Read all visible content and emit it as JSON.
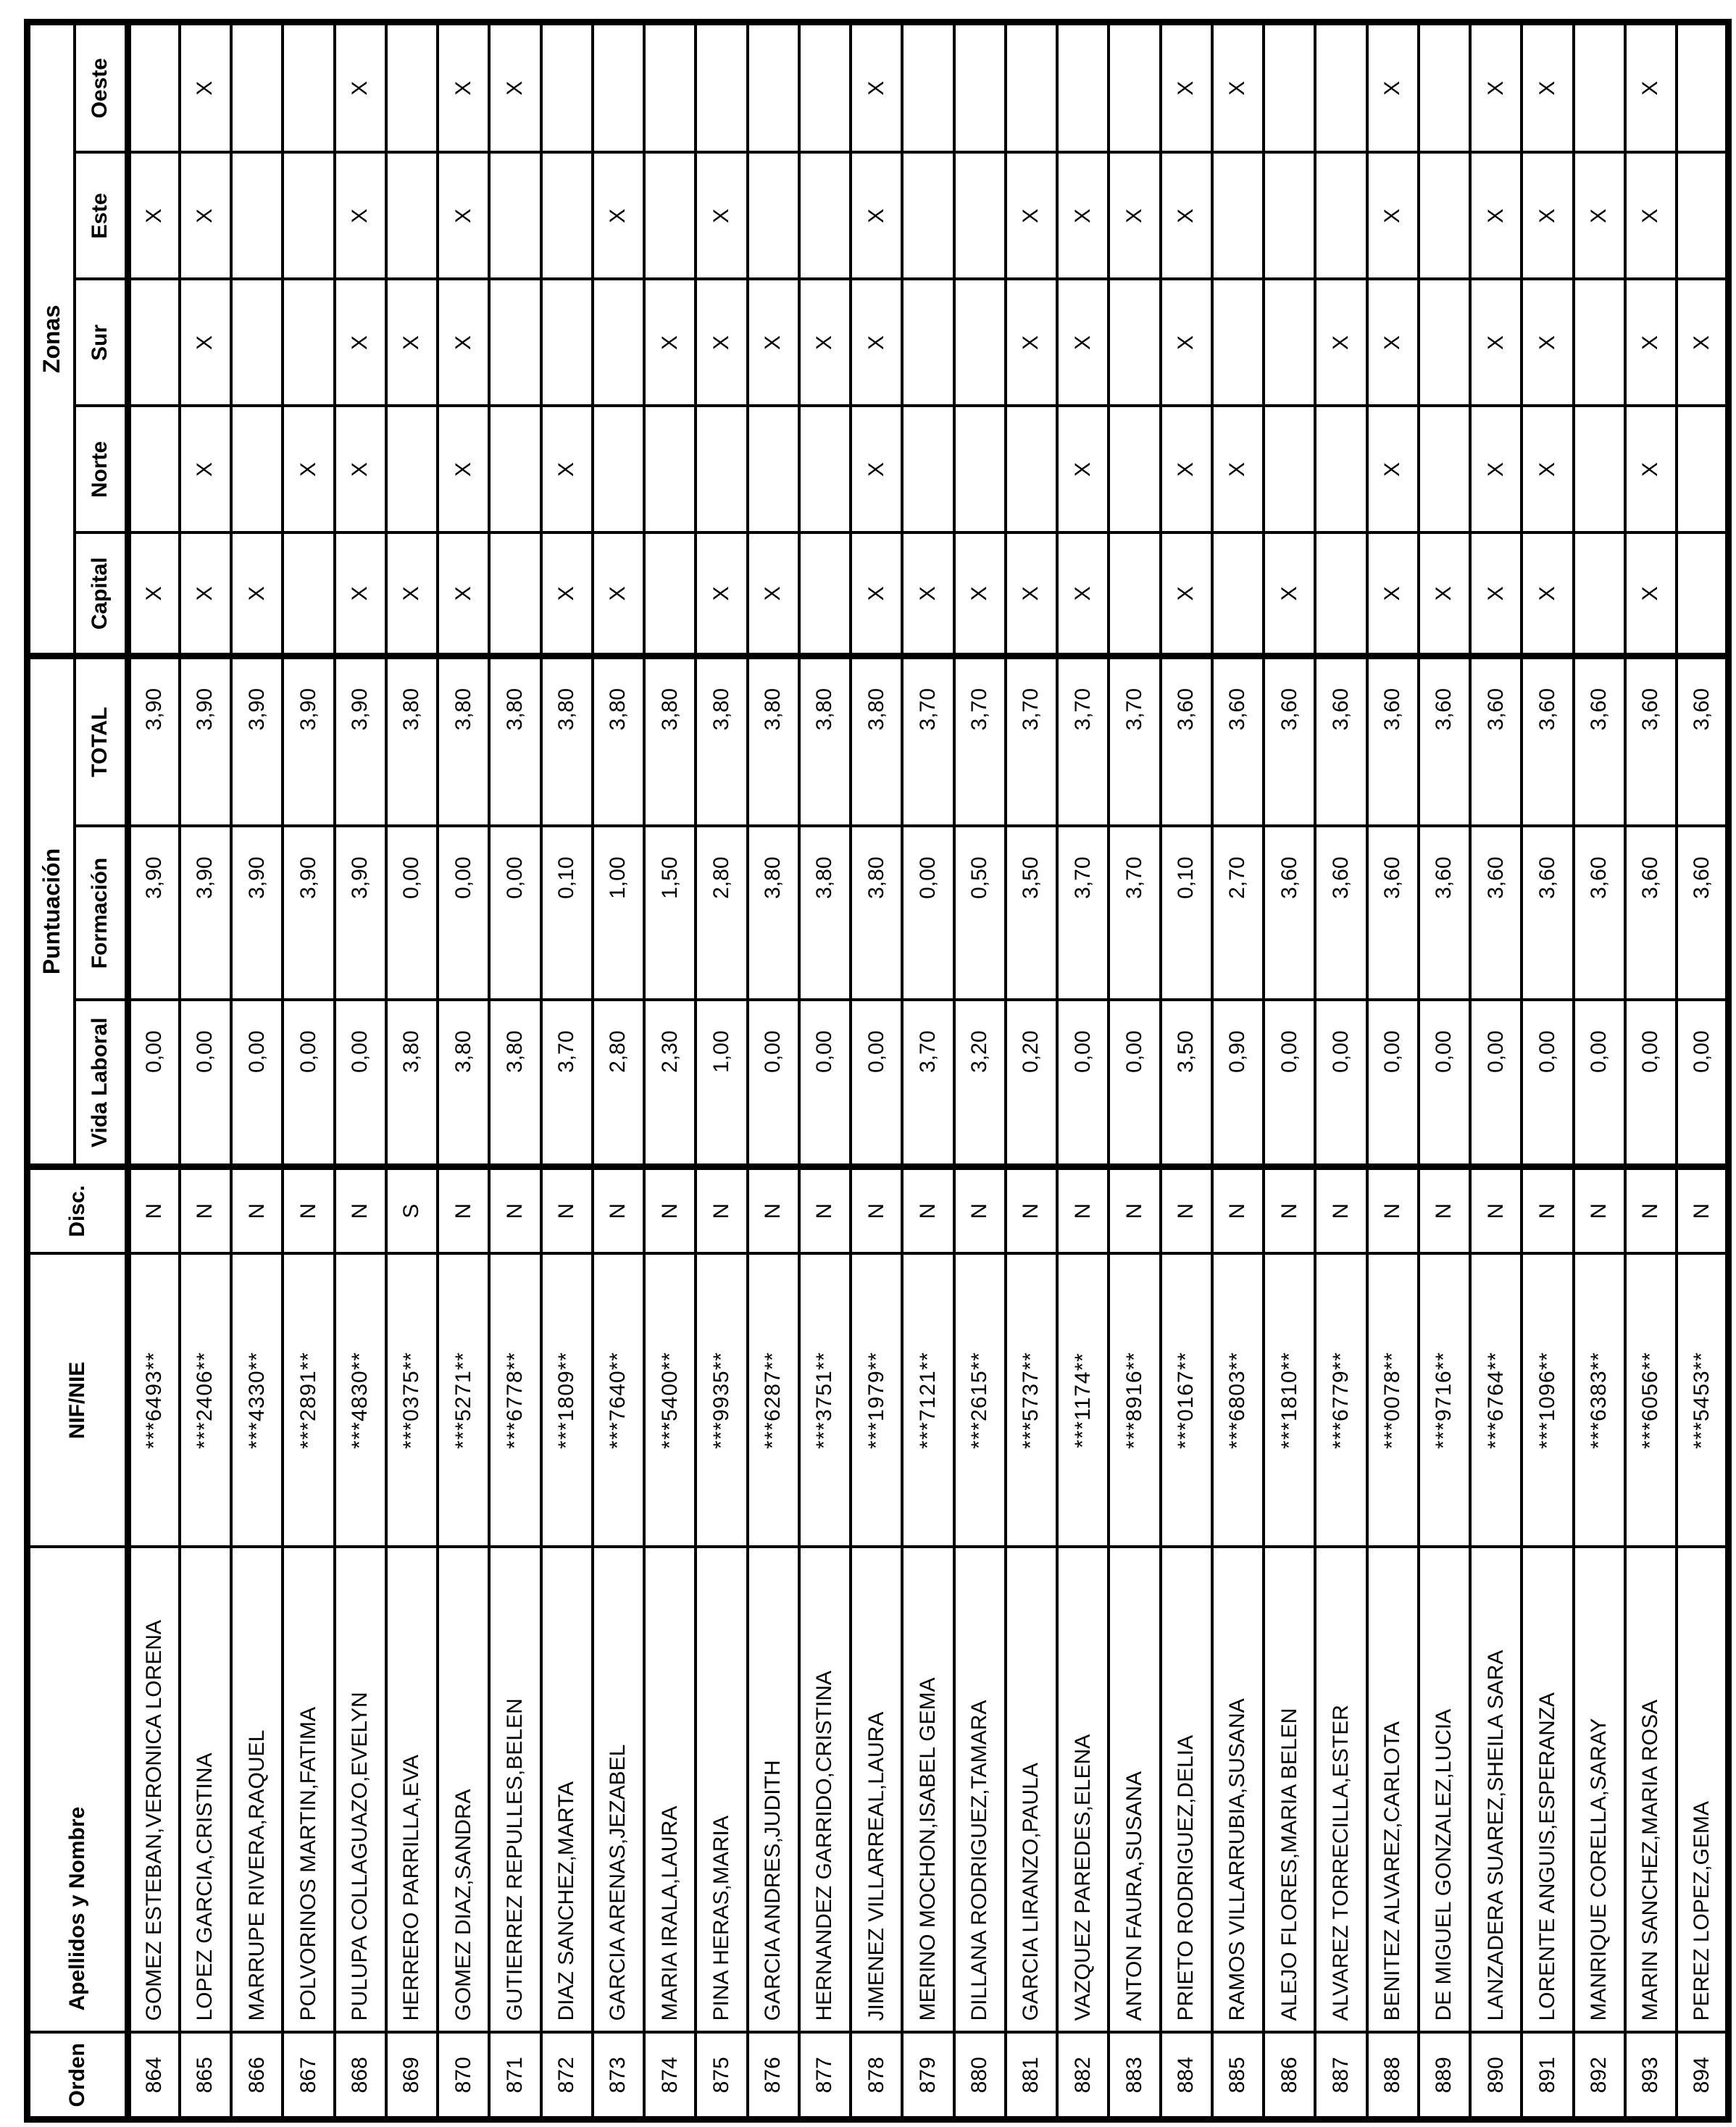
{
  "table": {
    "headers": {
      "orden": "Orden",
      "apellidos": "Apellidos y Nombre",
      "nif": "NIF/NIE",
      "disc": "Disc.",
      "puntuacion_group": "Puntuación",
      "vida_laboral": "Vida Laboral",
      "formacion": "Formación",
      "total": "TOTAL",
      "zonas_group": "Zonas",
      "capital": "Capital",
      "norte": "Norte",
      "sur": "Sur",
      "este": "Este",
      "oeste": "Oeste"
    },
    "mark": "X",
    "rows": [
      {
        "orden": "864",
        "nombre": "GOMEZ ESTEBAN,VERONICA LORENA",
        "nif": "***6493**",
        "disc": "N",
        "vida_laboral": "0,00",
        "formacion": "3,90",
        "total": "3,90",
        "capital": "X",
        "norte": "",
        "sur": "",
        "este": "X",
        "oeste": ""
      },
      {
        "orden": "865",
        "nombre": "LOPEZ GARCIA,CRISTINA",
        "nif": "***2406**",
        "disc": "N",
        "vida_laboral": "0,00",
        "formacion": "3,90",
        "total": "3,90",
        "capital": "X",
        "norte": "X",
        "sur": "X",
        "este": "X",
        "oeste": "X"
      },
      {
        "orden": "866",
        "nombre": "MARRUPE RIVERA,RAQUEL",
        "nif": "***4330**",
        "disc": "N",
        "vida_laboral": "0,00",
        "formacion": "3,90",
        "total": "3,90",
        "capital": "X",
        "norte": "",
        "sur": "",
        "este": "",
        "oeste": ""
      },
      {
        "orden": "867",
        "nombre": "POLVORINOS MARTIN,FATIMA",
        "nif": "***2891**",
        "disc": "N",
        "vida_laboral": "0,00",
        "formacion": "3,90",
        "total": "3,90",
        "capital": "",
        "norte": "X",
        "sur": "",
        "este": "",
        "oeste": ""
      },
      {
        "orden": "868",
        "nombre": "PULUPA COLLAGUAZO,EVELYN",
        "nif": "***4830**",
        "disc": "N",
        "vida_laboral": "0,00",
        "formacion": "3,90",
        "total": "3,90",
        "capital": "X",
        "norte": "X",
        "sur": "X",
        "este": "X",
        "oeste": "X"
      },
      {
        "orden": "869",
        "nombre": "HERRERO PARRILLA,EVA",
        "nif": "***0375**",
        "disc": "S",
        "vida_laboral": "3,80",
        "formacion": "0,00",
        "total": "3,80",
        "capital": "X",
        "norte": "",
        "sur": "X",
        "este": "",
        "oeste": ""
      },
      {
        "orden": "870",
        "nombre": "GOMEZ DIAZ,SANDRA",
        "nif": "***5271**",
        "disc": "N",
        "vida_laboral": "3,80",
        "formacion": "0,00",
        "total": "3,80",
        "capital": "X",
        "norte": "X",
        "sur": "X",
        "este": "X",
        "oeste": "X"
      },
      {
        "orden": "871",
        "nombre": "GUTIERREZ REPULLES,BELEN",
        "nif": "***6778**",
        "disc": "N",
        "vida_laboral": "3,80",
        "formacion": "0,00",
        "total": "3,80",
        "capital": "",
        "norte": "",
        "sur": "",
        "este": "",
        "oeste": "X"
      },
      {
        "orden": "872",
        "nombre": "DIAZ SANCHEZ,MARTA",
        "nif": "***1809**",
        "disc": "N",
        "vida_laboral": "3,70",
        "formacion": "0,10",
        "total": "3,80",
        "capital": "X",
        "norte": "X",
        "sur": "",
        "este": "",
        "oeste": ""
      },
      {
        "orden": "873",
        "nombre": "GARCIA ARENAS,JEZABEL",
        "nif": "***7640**",
        "disc": "N",
        "vida_laboral": "2,80",
        "formacion": "1,00",
        "total": "3,80",
        "capital": "X",
        "norte": "",
        "sur": "",
        "este": "X",
        "oeste": ""
      },
      {
        "orden": "874",
        "nombre": "MARIA IRALA,LAURA",
        "nif": "***5400**",
        "disc": "N",
        "vida_laboral": "2,30",
        "formacion": "1,50",
        "total": "3,80",
        "capital": "",
        "norte": "",
        "sur": "X",
        "este": "",
        "oeste": ""
      },
      {
        "orden": "875",
        "nombre": "PINA HERAS,MARIA",
        "nif": "***9935**",
        "disc": "N",
        "vida_laboral": "1,00",
        "formacion": "2,80",
        "total": "3,80",
        "capital": "X",
        "norte": "",
        "sur": "X",
        "este": "X",
        "oeste": ""
      },
      {
        "orden": "876",
        "nombre": "GARCIA ANDRES,JUDITH",
        "nif": "***6287**",
        "disc": "N",
        "vida_laboral": "0,00",
        "formacion": "3,80",
        "total": "3,80",
        "capital": "X",
        "norte": "",
        "sur": "X",
        "este": "",
        "oeste": ""
      },
      {
        "orden": "877",
        "nombre": "HERNANDEZ GARRIDO,CRISTINA",
        "nif": "***3751**",
        "disc": "N",
        "vida_laboral": "0,00",
        "formacion": "3,80",
        "total": "3,80",
        "capital": "",
        "norte": "",
        "sur": "X",
        "este": "",
        "oeste": ""
      },
      {
        "orden": "878",
        "nombre": "JIMENEZ VILLARREAL,LAURA",
        "nif": "***1979**",
        "disc": "N",
        "vida_laboral": "0,00",
        "formacion": "3,80",
        "total": "3,80",
        "capital": "X",
        "norte": "X",
        "sur": "X",
        "este": "X",
        "oeste": "X"
      },
      {
        "orden": "879",
        "nombre": "MERINO MOCHON,ISABEL GEMA",
        "nif": "***7121**",
        "disc": "N",
        "vida_laboral": "3,70",
        "formacion": "0,00",
        "total": "3,70",
        "capital": "X",
        "norte": "",
        "sur": "",
        "este": "",
        "oeste": ""
      },
      {
        "orden": "880",
        "nombre": "DILLANA RODRIGUEZ,TAMARA",
        "nif": "***2615**",
        "disc": "N",
        "vida_laboral": "3,20",
        "formacion": "0,50",
        "total": "3,70",
        "capital": "X",
        "norte": "",
        "sur": "",
        "este": "",
        "oeste": ""
      },
      {
        "orden": "881",
        "nombre": "GARCIA LIRANZO,PAULA",
        "nif": "***5737**",
        "disc": "N",
        "vida_laboral": "0,20",
        "formacion": "3,50",
        "total": "3,70",
        "capital": "X",
        "norte": "",
        "sur": "X",
        "este": "X",
        "oeste": ""
      },
      {
        "orden": "882",
        "nombre": "VAZQUEZ PAREDES,ELENA",
        "nif": "***1174**",
        "disc": "N",
        "vida_laboral": "0,00",
        "formacion": "3,70",
        "total": "3,70",
        "capital": "X",
        "norte": "X",
        "sur": "X",
        "este": "X",
        "oeste": ""
      },
      {
        "orden": "883",
        "nombre": "ANTON FAURA,SUSANA",
        "nif": "***8916**",
        "disc": "N",
        "vida_laboral": "0,00",
        "formacion": "3,70",
        "total": "3,70",
        "capital": "",
        "norte": "",
        "sur": "",
        "este": "X",
        "oeste": ""
      },
      {
        "orden": "884",
        "nombre": "PRIETO RODRIGUEZ,DELIA",
        "nif": "***0167**",
        "disc": "N",
        "vida_laboral": "3,50",
        "formacion": "0,10",
        "total": "3,60",
        "capital": "X",
        "norte": "X",
        "sur": "X",
        "este": "X",
        "oeste": "X"
      },
      {
        "orden": "885",
        "nombre": "RAMOS VILLARRUBIA,SUSANA",
        "nif": "***6803**",
        "disc": "N",
        "vida_laboral": "0,90",
        "formacion": "2,70",
        "total": "3,60",
        "capital": "",
        "norte": "X",
        "sur": "",
        "este": "",
        "oeste": "X"
      },
      {
        "orden": "886",
        "nombre": "ALEJO FLORES,MARIA BELEN",
        "nif": "***1810**",
        "disc": "N",
        "vida_laboral": "0,00",
        "formacion": "3,60",
        "total": "3,60",
        "capital": "X",
        "norte": "",
        "sur": "",
        "este": "",
        "oeste": ""
      },
      {
        "orden": "887",
        "nombre": "ALVAREZ TORRECILLA,ESTER",
        "nif": "***6779**",
        "disc": "N",
        "vida_laboral": "0,00",
        "formacion": "3,60",
        "total": "3,60",
        "capital": "",
        "norte": "",
        "sur": "X",
        "este": "",
        "oeste": ""
      },
      {
        "orden": "888",
        "nombre": "BENITEZ ALVAREZ,CARLOTA",
        "nif": "***0078**",
        "disc": "N",
        "vida_laboral": "0,00",
        "formacion": "3,60",
        "total": "3,60",
        "capital": "X",
        "norte": "X",
        "sur": "X",
        "este": "X",
        "oeste": "X"
      },
      {
        "orden": "889",
        "nombre": "DE MIGUEL GONZALEZ,LUCIA",
        "nif": "***9716**",
        "disc": "N",
        "vida_laboral": "0,00",
        "formacion": "3,60",
        "total": "3,60",
        "capital": "X",
        "norte": "",
        "sur": "",
        "este": "",
        "oeste": ""
      },
      {
        "orden": "890",
        "nombre": "LANZADERA SUAREZ,SHEILA SARA",
        "nif": "***6764**",
        "disc": "N",
        "vida_laboral": "0,00",
        "formacion": "3,60",
        "total": "3,60",
        "capital": "X",
        "norte": "X",
        "sur": "X",
        "este": "X",
        "oeste": "X"
      },
      {
        "orden": "891",
        "nombre": "LORENTE ANGUIS,ESPERANZA",
        "nif": "***1096**",
        "disc": "N",
        "vida_laboral": "0,00",
        "formacion": "3,60",
        "total": "3,60",
        "capital": "X",
        "norte": "X",
        "sur": "X",
        "este": "X",
        "oeste": "X"
      },
      {
        "orden": "892",
        "nombre": "MANRIQUE CORELLA,SARAY",
        "nif": "***6383**",
        "disc": "N",
        "vida_laboral": "0,00",
        "formacion": "3,60",
        "total": "3,60",
        "capital": "",
        "norte": "",
        "sur": "",
        "este": "X",
        "oeste": ""
      },
      {
        "orden": "893",
        "nombre": "MARIN SANCHEZ,MARIA ROSA",
        "nif": "***6056**",
        "disc": "N",
        "vida_laboral": "0,00",
        "formacion": "3,60",
        "total": "3,60",
        "capital": "X",
        "norte": "X",
        "sur": "X",
        "este": "X",
        "oeste": "X"
      },
      {
        "orden": "894",
        "nombre": "PEREZ LOPEZ,GEMA",
        "nif": "***5453**",
        "disc": "N",
        "vida_laboral": "0,00",
        "formacion": "3,60",
        "total": "3,60",
        "capital": "",
        "norte": "",
        "sur": "X",
        "este": "",
        "oeste": ""
      }
    ]
  }
}
